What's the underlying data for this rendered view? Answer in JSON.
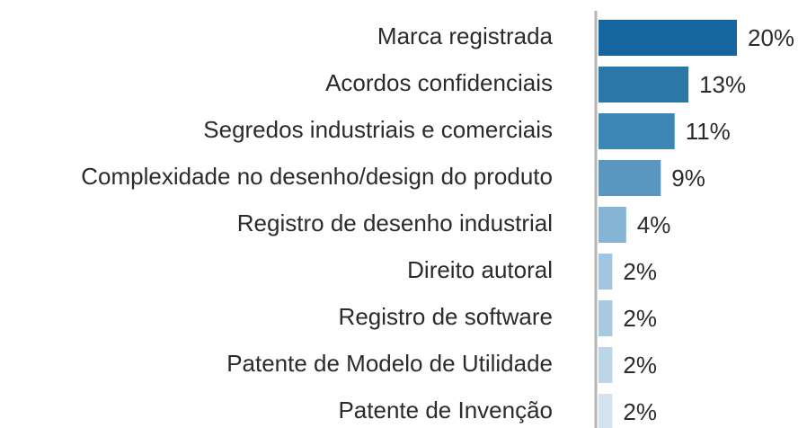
{
  "chart_data": {
    "type": "bar",
    "categories": [
      "Marca registrada",
      "Acordos confidenciais",
      "Segredos industriais e comerciais",
      "Complexidade no desenho/design do produto",
      "Registro de desenho industrial",
      "Direito autoral",
      "Registro de software",
      "Patente de Modelo de Utilidade",
      "Patente de Invenção"
    ],
    "values": [
      20,
      13,
      11,
      9,
      4,
      2,
      2,
      2,
      2
    ],
    "value_labels": [
      "20%",
      "13%",
      "11%",
      "9%",
      "4%",
      "2%",
      "2%",
      "2%",
      "2%"
    ],
    "colors": [
      "#1566a0",
      "#2a78a8",
      "#3b86b5",
      "#5a97c0",
      "#86b4d4",
      "#a3c5df",
      "#a8c9e0",
      "#bcd6e8",
      "#d3e4f0"
    ]
  }
}
